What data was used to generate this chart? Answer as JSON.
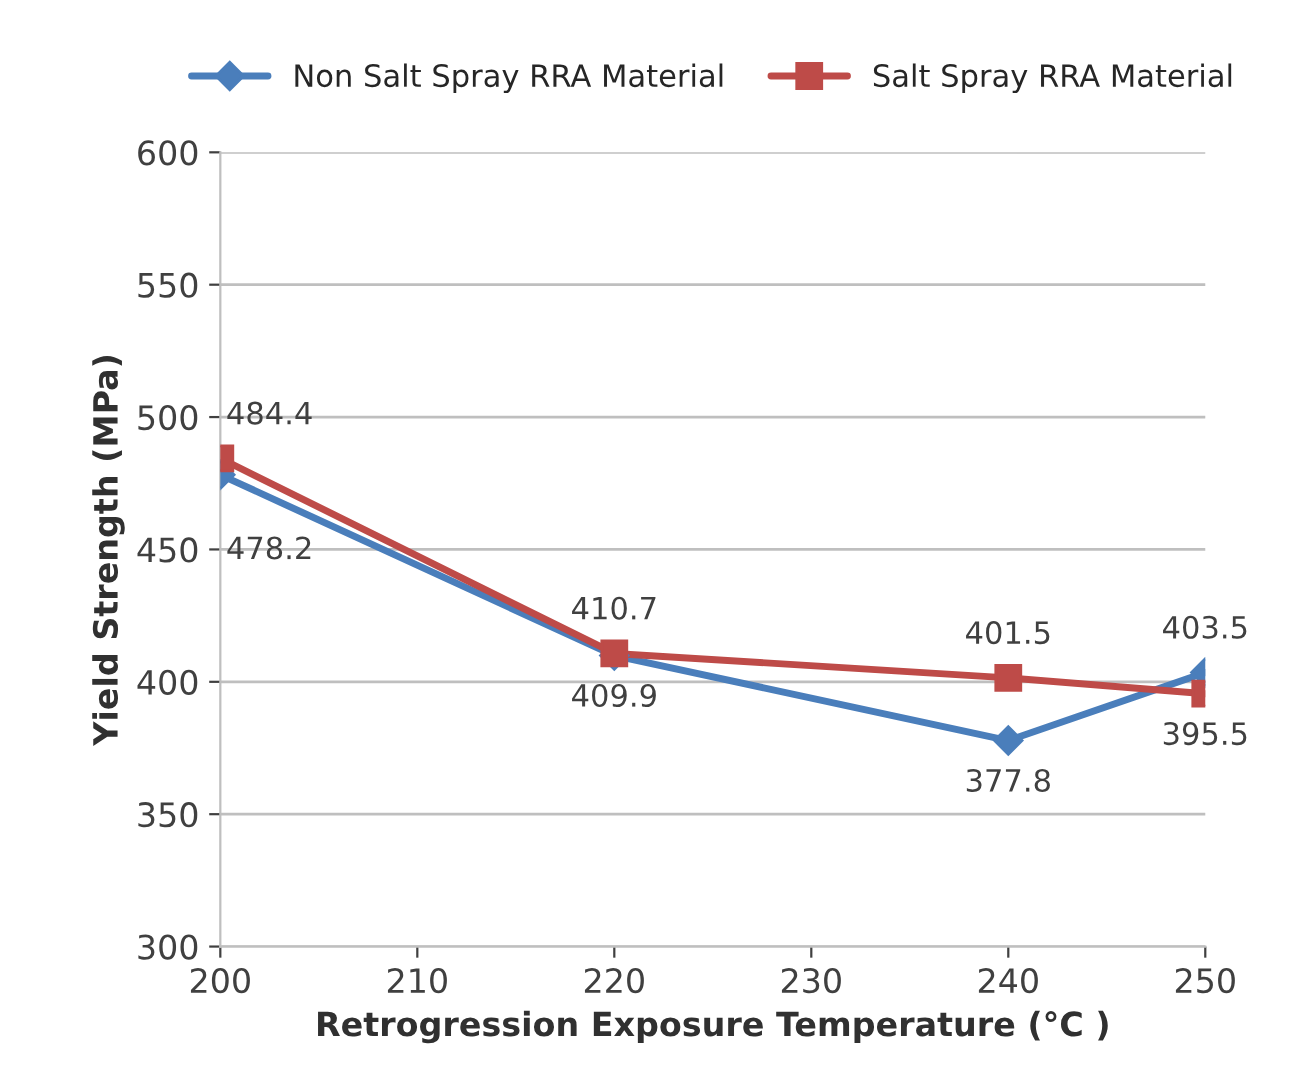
{
  "chart_data": {
    "type": "line",
    "xlabel": "Retrogression Exposure Temperature (°C )",
    "ylabel": "Yield Strength (MPa)",
    "x": [
      200,
      220,
      240,
      250
    ],
    "series": [
      {
        "name": "Non Salt Spray RRA Material",
        "color": "#4a7ebb",
        "marker": "diamond",
        "values": [
          478.2,
          409.9,
          377.8,
          403.5
        ]
      },
      {
        "name": "Salt Spray RRA Material",
        "color": "#be4b48",
        "marker": "square",
        "values": [
          484.4,
          410.7,
          401.5,
          395.5
        ]
      }
    ],
    "xlim": [
      200,
      250
    ],
    "xticks": [
      200,
      210,
      220,
      230,
      240,
      250
    ],
    "ylim": [
      300,
      600
    ],
    "yticks": [
      300,
      350,
      400,
      450,
      500,
      550,
      600
    ],
    "grid": "y",
    "legend": "top",
    "data_labels": true
  }
}
